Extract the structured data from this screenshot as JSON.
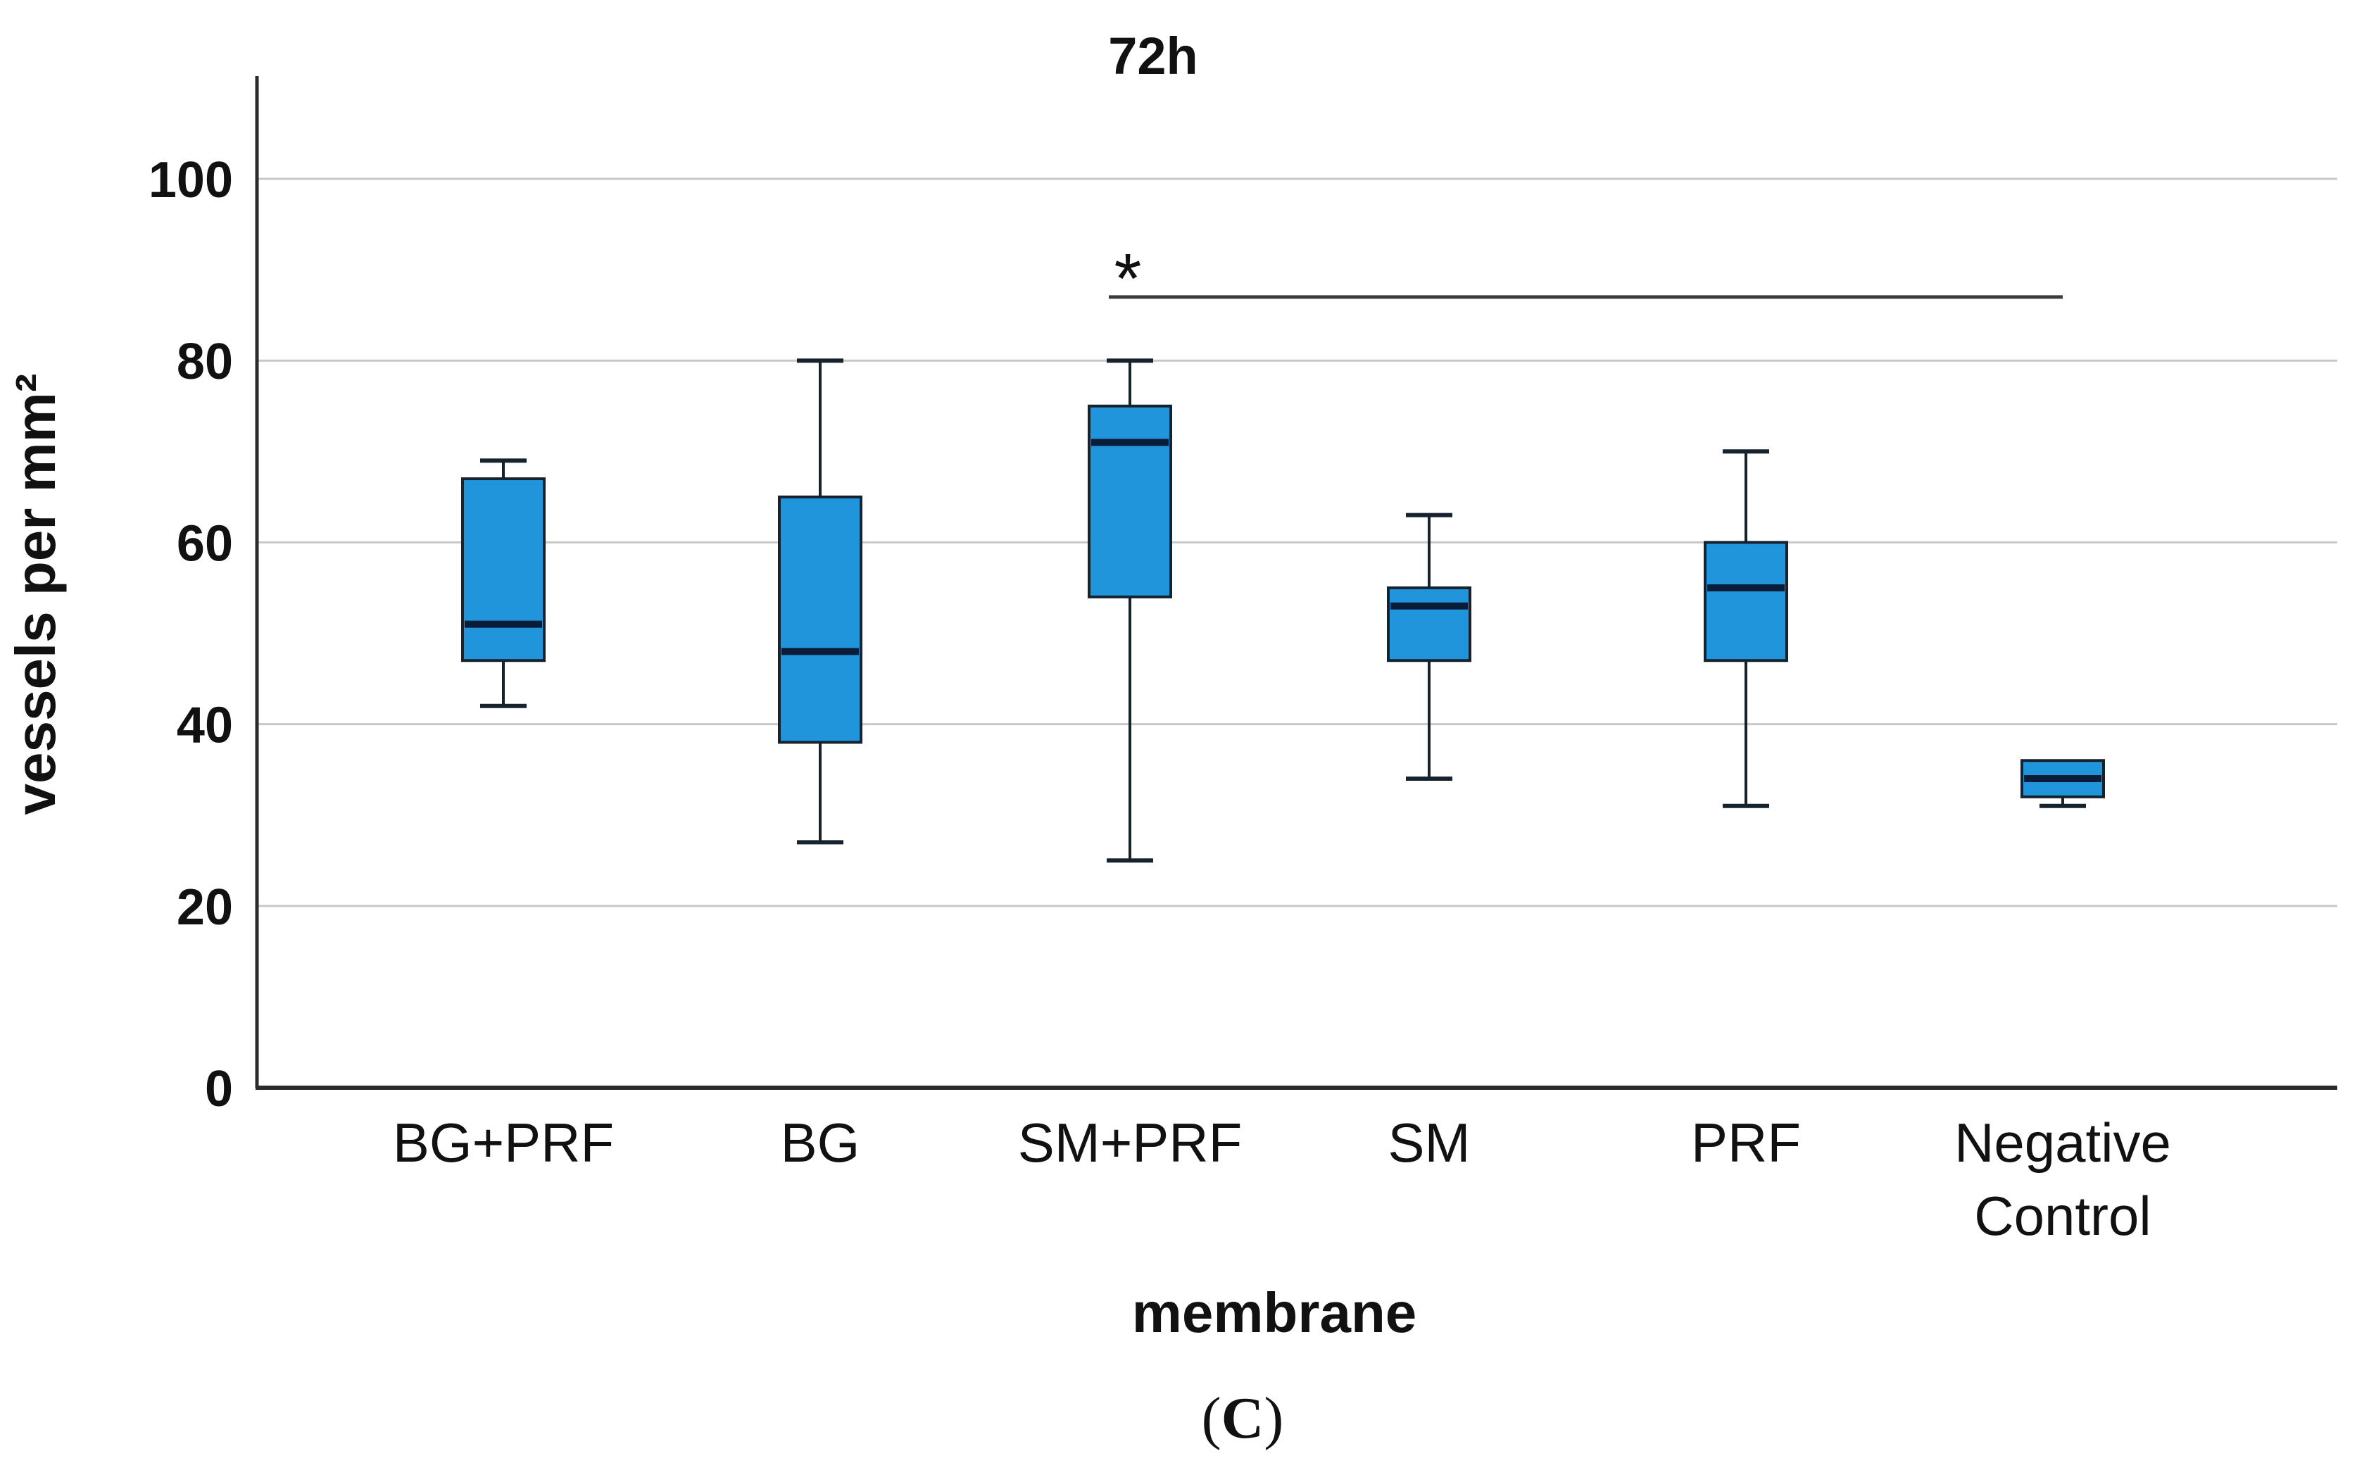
{
  "figure": {
    "background": "#ffffff"
  },
  "caption": {
    "open": "(",
    "letter": "C",
    "close": ")"
  },
  "chart_data": {
    "type": "box",
    "title": "72h",
    "xlabel": "membrane",
    "ylabel": "vessels per mm²",
    "ylim": [
      0,
      110
    ],
    "yticks": [
      0,
      20,
      40,
      60,
      80,
      100
    ],
    "grid": "horizontal-gridlines",
    "legend": "none",
    "categories": [
      "BG+PRF",
      "BG",
      "SM+PRF",
      "SM",
      "PRF",
      "Negative Control"
    ],
    "boxes": [
      {
        "label": "BG+PRF",
        "label_lines": [
          "BG+PRF"
        ],
        "min": 42,
        "q1": 47,
        "median": 51,
        "q3": 67,
        "max": 69
      },
      {
        "label": "BG",
        "label_lines": [
          "BG"
        ],
        "min": 27,
        "q1": 38,
        "median": 48,
        "q3": 65,
        "max": 80
      },
      {
        "label": "SM+PRF",
        "label_lines": [
          "SM+PRF"
        ],
        "min": 25,
        "q1": 54,
        "median": 71,
        "q3": 75,
        "max": 80
      },
      {
        "label": "SM",
        "label_lines": [
          "SM"
        ],
        "min": 34,
        "q1": 47,
        "median": 53,
        "q3": 55,
        "max": 63
      },
      {
        "label": "PRF",
        "label_lines": [
          "PRF"
        ],
        "min": 31,
        "q1": 47,
        "median": 55,
        "q3": 60,
        "max": 70
      },
      {
        "label": "Negative Control",
        "label_lines": [
          "Negative",
          "Control"
        ],
        "min": 31,
        "q1": 32,
        "median": 34,
        "q3": 36,
        "max": 36
      }
    ],
    "significance": {
      "label": "*",
      "from": "SM+PRF",
      "to": "Negative Control",
      "y": 87
    },
    "colors": {
      "box_fill": "#2095DC",
      "box_stroke": "#16222E",
      "median": "#0A1C38",
      "grid": "#C8C8C8",
      "axis": "#2B2B2B",
      "sig_line": "#3C3C3C",
      "text": "#111111"
    }
  }
}
